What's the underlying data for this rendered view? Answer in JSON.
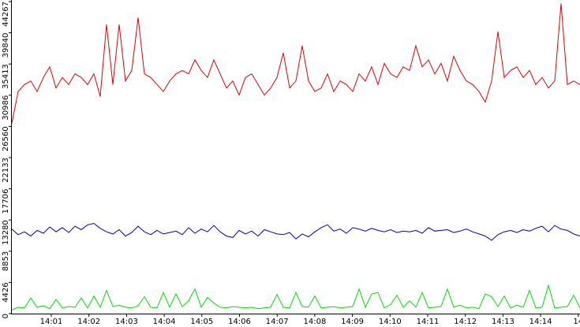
{
  "chart_data": {
    "type": "line",
    "ylim": [
      0,
      44267
    ],
    "yticks": [
      0,
      4426,
      8853,
      13280,
      17706,
      22133,
      26560,
      30986,
      35413,
      39840,
      44267
    ],
    "xticks": [
      "14:01",
      "14:02",
      "14:03",
      "14:04",
      "14:05",
      "14:06",
      "14:07",
      "14:08",
      "14:09",
      "14:10",
      "14:11",
      "14:12",
      "14:13",
      "14:14",
      "14"
    ],
    "series": [
      {
        "color": "#e00000",
        "values": [
          27000,
          31500,
          32500,
          33000,
          31500,
          33500,
          35000,
          32000,
          33500,
          32500,
          34000,
          33500,
          32500,
          34000,
          30800,
          41000,
          32500,
          41000,
          33000,
          34500,
          42000,
          34000,
          33500,
          32500,
          31500,
          33000,
          34000,
          34500,
          34000,
          36000,
          34500,
          33500,
          36000,
          34000,
          32000,
          33000,
          31000,
          33500,
          34000,
          32500,
          31000,
          32000,
          33500,
          37000,
          32000,
          33000,
          38000,
          33000,
          31500,
          32000,
          34000,
          31500,
          33000,
          32500,
          31500,
          34000,
          33000,
          35000,
          32500,
          35500,
          34000,
          33500,
          35000,
          34500,
          38000,
          35000,
          36000,
          34000,
          35500,
          33000,
          36500,
          34500,
          33000,
          32500,
          31500,
          30000,
          33000,
          40000,
          33500,
          34500,
          35000,
          33500,
          34500,
          32500,
          33500,
          32000,
          33000,
          44000,
          32500,
          33000,
          32500
        ]
      },
      {
        "color": "#0000b4",
        "values": [
          12000,
          11200,
          11600,
          11000,
          11800,
          11400,
          12300,
          11600,
          12200,
          11500,
          12400,
          11900,
          12600,
          12800,
          12100,
          11600,
          11300,
          11900,
          11000,
          11500,
          12400,
          11600,
          11200,
          11800,
          11300,
          11500,
          11700,
          11200,
          12200,
          11400,
          12000,
          11600,
          12500,
          11600,
          11000,
          10800,
          11800,
          11300,
          11700,
          11000,
          11900,
          11600,
          11300,
          11200,
          11500,
          10600,
          11300,
          10900,
          11600,
          12200,
          12600,
          11700,
          12000,
          11400,
          12200,
          12000,
          11700,
          12100,
          11800,
          11600,
          11900,
          11500,
          11700,
          11600,
          11800,
          11400,
          12200,
          11700,
          11800,
          11900,
          11500,
          11700,
          12000,
          11600,
          11300,
          11000,
          10400,
          11200,
          11600,
          11800,
          11500,
          11900,
          11700,
          12100,
          12400,
          11600,
          12500,
          12000,
          11800,
          11300,
          11000
        ]
      },
      {
        "color": "#00dd00",
        "values": [
          500,
          900,
          800,
          2200,
          900,
          1100,
          700,
          2000,
          800,
          1000,
          900,
          2200,
          800,
          2500,
          900,
          3300,
          1000,
          1200,
          900,
          800,
          1100,
          2400,
          900,
          800,
          3000,
          900,
          2800,
          1000,
          1800,
          3500,
          900,
          2300,
          1500,
          900,
          800,
          1000,
          900,
          800,
          900,
          700,
          800,
          900,
          2700,
          900,
          800,
          3000,
          1000,
          900,
          2500,
          800,
          900,
          1000,
          800,
          900,
          1000,
          3500,
          900,
          2800,
          3000,
          800,
          1300,
          2600,
          900,
          1800,
          900,
          3000,
          800,
          900,
          1000,
          3500,
          900,
          1200,
          800,
          900,
          700,
          2800,
          2400,
          1000,
          2500,
          800,
          1200,
          900,
          3300,
          800,
          900,
          4000,
          800,
          900,
          1000,
          2600,
          800
        ]
      }
    ]
  }
}
